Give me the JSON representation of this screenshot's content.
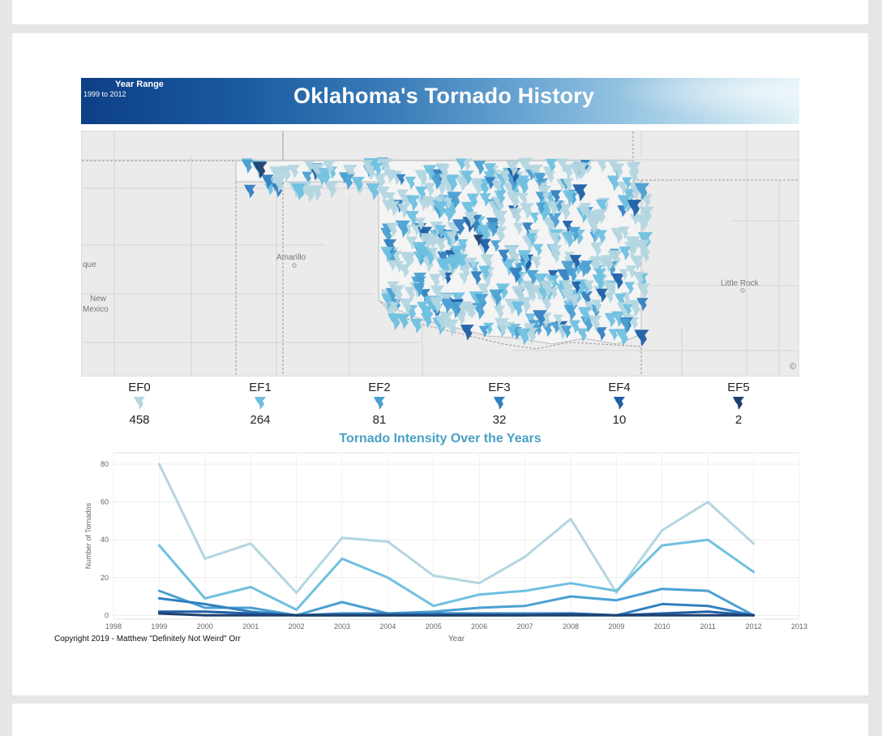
{
  "banner": {
    "year_range_label": "Year Range",
    "year_range_value": "1999 to 2012",
    "title": "Oklahoma's Tornado History"
  },
  "map": {
    "labels": [
      {
        "key": "que",
        "text": "que"
      },
      {
        "key": "amarillo",
        "text": "Amarillo"
      },
      {
        "key": "new_mexico_1",
        "text": "New"
      },
      {
        "key": "new_mexico_2",
        "text": "Mexico"
      },
      {
        "key": "little_rock",
        "text": "Little Rock"
      }
    ],
    "attribution": "©"
  },
  "legend": [
    {
      "name": "EF0",
      "count": "458",
      "color": "#b3d6e0"
    },
    {
      "name": "EF1",
      "count": "264",
      "color": "#6fc0e0"
    },
    {
      "name": "EF2",
      "count": "81",
      "color": "#4ba0d2"
    },
    {
      "name": "EF3",
      "count": "32",
      "color": "#3180c0"
    },
    {
      "name": "EF4",
      "count": "10",
      "color": "#1e5fa6"
    },
    {
      "name": "EF5",
      "count": "2",
      "color": "#1f3f6e"
    }
  ],
  "chart_data": {
    "type": "line",
    "title": "Tornado Intensity Over the Years",
    "xlabel": "Year",
    "ylabel": "Number of Tornados",
    "xlim": [
      1998,
      2013
    ],
    "ylim": [
      -2,
      86
    ],
    "x_ticks": [
      1998,
      1999,
      2000,
      2001,
      2002,
      2003,
      2004,
      2005,
      2006,
      2007,
      2008,
      2009,
      2010,
      2011,
      2012,
      2013
    ],
    "y_ticks": [
      0,
      20,
      40,
      60,
      80
    ],
    "grid": true,
    "x": [
      1999,
      2000,
      2001,
      2002,
      2003,
      2004,
      2005,
      2006,
      2007,
      2008,
      2009,
      2010,
      2011,
      2012
    ],
    "series": [
      {
        "name": "EF0",
        "color": "#b3d6e0",
        "values": [
          80,
          30,
          38,
          12,
          41,
          39,
          21,
          17,
          31,
          51,
          12,
          45,
          60,
          38
        ]
      },
      {
        "name": "EF1",
        "color": "#6fc0e0",
        "values": [
          37,
          9,
          15,
          3,
          30,
          20,
          5,
          11,
          13,
          17,
          13,
          37,
          40,
          23
        ]
      },
      {
        "name": "EF2",
        "color": "#4ba0d2",
        "values": [
          13,
          4,
          4,
          0,
          7,
          1,
          2,
          4,
          5,
          10,
          8,
          14,
          13,
          0
        ]
      },
      {
        "name": "EF3",
        "color": "#3180c0",
        "values": [
          9,
          6,
          2,
          0,
          1,
          1,
          1,
          1,
          1,
          1,
          0,
          6,
          5,
          0
        ]
      },
      {
        "name": "EF4",
        "color": "#1e5fa6",
        "values": [
          2,
          2,
          1,
          0,
          0,
          0,
          0,
          0,
          0,
          1,
          0,
          1,
          2,
          0
        ]
      },
      {
        "name": "EF5",
        "color": "#1f3f6e",
        "values": [
          1,
          0,
          0,
          0,
          0,
          0,
          0,
          0,
          0,
          0,
          0,
          0,
          0,
          0
        ]
      }
    ]
  },
  "footer": {
    "copyright": "Copyright 2019 - Matthew \"Definitely Not Weird\" Orr"
  }
}
